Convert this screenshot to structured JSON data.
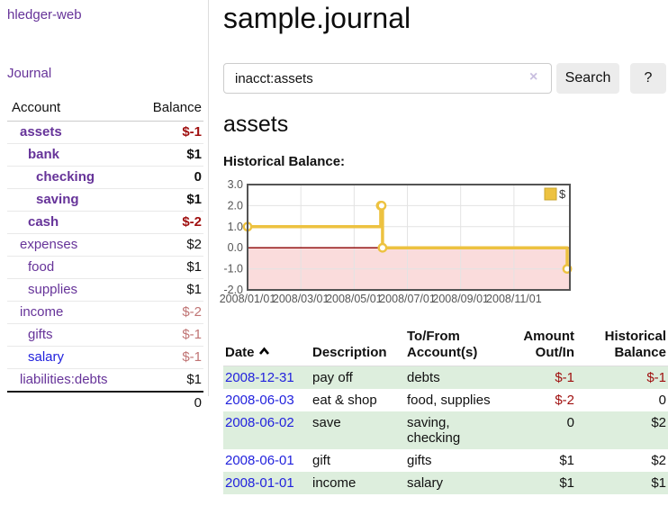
{
  "app": {
    "brand": "hledger-web"
  },
  "sidebar": {
    "journal_link": "Journal",
    "accounts_table": {
      "account_header": "Account",
      "balance_header": "Balance",
      "rows": [
        {
          "name": "assets",
          "indent": 1,
          "balance": "$-1",
          "inacct": true,
          "negative": true,
          "link_style": "purple"
        },
        {
          "name": "bank",
          "indent": 2,
          "balance": "$1",
          "inacct": true,
          "negative": false,
          "link_style": "purple"
        },
        {
          "name": "checking",
          "indent": 3,
          "balance": "0",
          "inacct": true,
          "negative": false,
          "link_style": "purple"
        },
        {
          "name": "saving",
          "indent": 3,
          "balance": "$1",
          "inacct": true,
          "negative": false,
          "link_style": "purple"
        },
        {
          "name": "cash",
          "indent": 2,
          "balance": "$-2",
          "inacct": true,
          "negative": true,
          "link_style": "purple"
        },
        {
          "name": "expenses",
          "indent": 1,
          "balance": "$2",
          "inacct": false,
          "negative": false,
          "link_style": "purple"
        },
        {
          "name": "food",
          "indent": 2,
          "balance": "$1",
          "inacct": false,
          "negative": false,
          "link_style": "purple"
        },
        {
          "name": "supplies",
          "indent": 2,
          "balance": "$1",
          "inacct": false,
          "negative": false,
          "link_style": "purple"
        },
        {
          "name": "income",
          "indent": 1,
          "balance": "$-2",
          "inacct": false,
          "negative": true,
          "link_style": "purple"
        },
        {
          "name": "gifts",
          "indent": 2,
          "balance": "$-1",
          "inacct": false,
          "negative": true,
          "link_style": "purple"
        },
        {
          "name": "salary",
          "indent": 2,
          "balance": "$-1",
          "inacct": false,
          "negative": true,
          "link_style": "blue"
        },
        {
          "name": "liabilities:debts",
          "indent": 1,
          "balance": "$1",
          "inacct": false,
          "negative": false,
          "link_style": "purple"
        }
      ],
      "total": "0"
    }
  },
  "header": {
    "title": "sample.journal"
  },
  "search": {
    "value": "inacct:assets",
    "clear_icon": "×",
    "search_button": "Search",
    "help_button": "?"
  },
  "account_page": {
    "heading": "assets",
    "chart_label": "Historical Balance:"
  },
  "chart_data": {
    "type": "line",
    "title": "Historical Balance:",
    "step": true,
    "series": [
      {
        "name": "$",
        "color": "#edc240",
        "points": [
          [
            "2008-01-01",
            1
          ],
          [
            "2008-06-01",
            2
          ],
          [
            "2008-06-02",
            2
          ],
          [
            "2008-06-03",
            0
          ],
          [
            "2008-12-31",
            -1
          ]
        ]
      }
    ],
    "x_ticks": [
      "2008/01/01",
      "2008/03/01",
      "2008/05/01",
      "2008/07/01",
      "2008/09/01",
      "2008/11/01"
    ],
    "x_tick_months": [
      0,
      2,
      4,
      6,
      8,
      10
    ],
    "xlim_months": [
      0,
      12.1
    ],
    "y_ticks": [
      "3.0",
      "2.0",
      "1.0",
      "0.0",
      "-1.0",
      "-2.0"
    ],
    "y_tick_values": [
      3,
      2,
      1,
      0,
      -1,
      -2
    ],
    "ylim": [
      -2,
      3
    ],
    "grid": true,
    "legend": {
      "label": "$",
      "position": "top-right"
    },
    "negative_region_fill": "#fadcdc",
    "zero_line_color": "#8b0000",
    "border_color": "#545454",
    "tick_label_color": "#555555"
  },
  "register": {
    "headers": {
      "date": "Date",
      "sort": "ascending",
      "description": "Description",
      "accounts": "To/From Account(s)",
      "amount": "Amount Out/In",
      "balance": "Historical Balance"
    },
    "rows": [
      {
        "date": "2008-12-31",
        "description": "pay off",
        "accounts": "debts",
        "amount": "$-1",
        "balance": "$-1",
        "amount_negative": true,
        "balance_negative": true,
        "green": true
      },
      {
        "date": "2008-06-03",
        "description": "eat & shop",
        "accounts": "food, supplies",
        "amount": "$-2",
        "balance": "0",
        "amount_negative": true,
        "balance_negative": false,
        "green": false
      },
      {
        "date": "2008-06-02",
        "description": "save",
        "accounts": "saving, checking",
        "amount": "0",
        "balance": "$2",
        "amount_negative": false,
        "balance_negative": false,
        "green": true
      },
      {
        "date": "2008-06-01",
        "description": "gift",
        "accounts": "gifts",
        "amount": "$1",
        "balance": "$2",
        "amount_negative": false,
        "balance_negative": false,
        "green": false
      },
      {
        "date": "2008-01-01",
        "description": "income",
        "accounts": "salary",
        "amount": "$1",
        "balance": "$1",
        "amount_negative": false,
        "balance_negative": false,
        "green": true
      }
    ]
  },
  "colors": {
    "accent_purple": "#663399",
    "link_blue": "#2222dd",
    "negative": "#a01010",
    "negative_dim": "#c07474",
    "row_green": "#ddeedd",
    "chart_yellow": "#edc240"
  }
}
